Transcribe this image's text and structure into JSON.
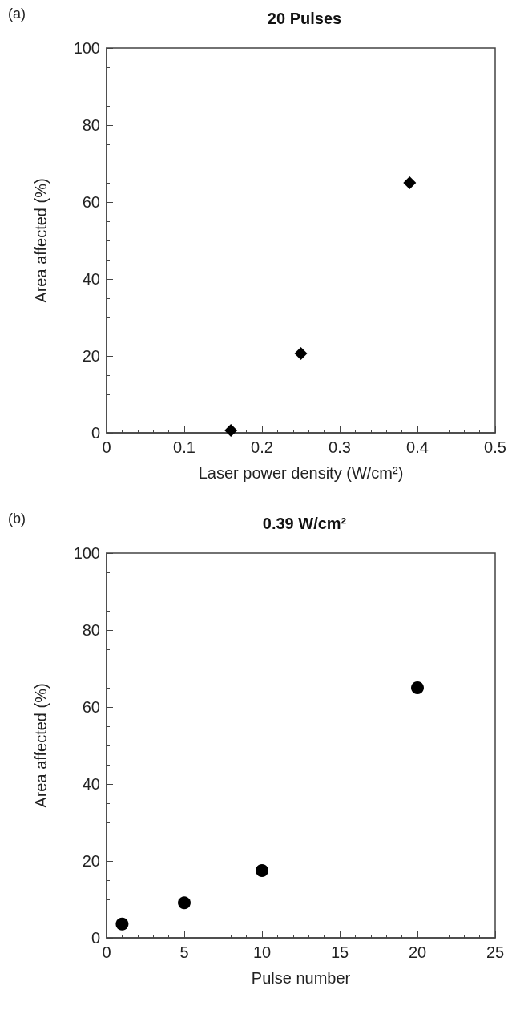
{
  "chart_data": [
    {
      "type": "scatter",
      "title": "20 Pulses",
      "xlabel": "Laser power density (W/cm²)",
      "ylabel": "Area affected (%)",
      "annotations": [
        "(a)"
      ],
      "x": [
        0.16,
        0.25,
        0.39
      ],
      "series": [
        {
          "color": "#000000",
          "values": [
            0.6,
            20.6,
            65
          ]
        }
      ],
      "xlim": [
        0,
        0.5
      ],
      "xticks": [
        0,
        0.1,
        0.2,
        0.3,
        0.4,
        0.5
      ],
      "ylim": [
        0,
        100
      ],
      "yticks": [
        0,
        20,
        40,
        60,
        80,
        100
      ],
      "marker": "diamond",
      "grid": false
    },
    {
      "type": "scatter",
      "title": "0.39 W/cm²",
      "xlabel": "Pulse number",
      "ylabel": "Area affected (%)",
      "annotations": [
        "(b)"
      ],
      "x": [
        1,
        5,
        10,
        20
      ],
      "series": [
        {
          "color": "#000000",
          "values": [
            3.6,
            9.1,
            17.5,
            65
          ]
        }
      ],
      "xlim": [
        0,
        25
      ],
      "xticks": [
        0,
        5,
        10,
        15,
        20,
        25
      ],
      "ylim": [
        0,
        100
      ],
      "yticks": [
        0,
        20,
        40,
        60,
        80,
        100
      ],
      "marker": "circle",
      "grid": false
    }
  ]
}
